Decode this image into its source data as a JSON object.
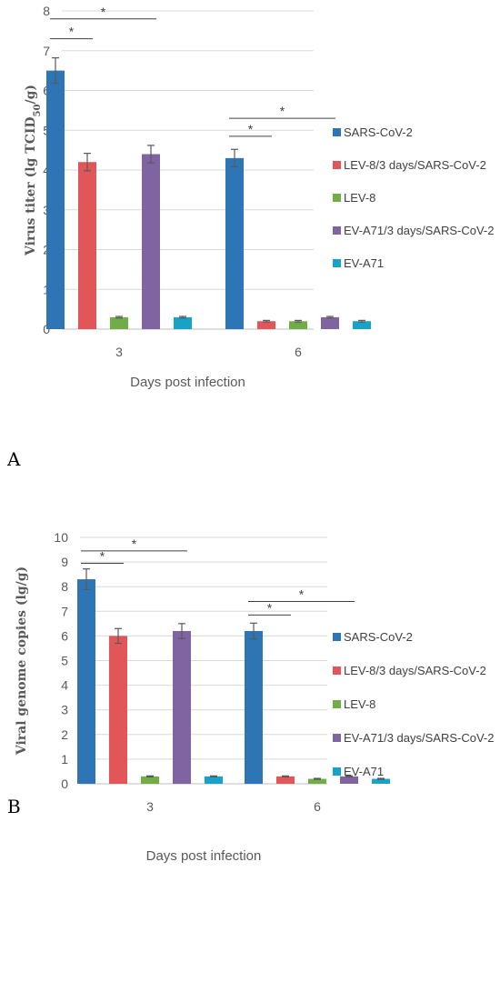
{
  "colors": [
    "#2e75b6",
    "#e15759",
    "#70ad47",
    "#8064a2",
    "#17a2c8"
  ],
  "chart_data": [
    {
      "type": "bar",
      "panel_label": "A",
      "categories": [
        "3",
        "6"
      ],
      "xlabel": "Days post infection",
      "ylabel": "Virus titer (lg TCID50/g)",
      "ylabel_main": "Virus titer (lg TCID",
      "ylabel_sub": "50",
      "ylabel_end": "/g)",
      "ylim": [
        0,
        8
      ],
      "yticks": [
        "0",
        "1",
        "2",
        "3",
        "4",
        "5",
        "6",
        "7",
        "8"
      ],
      "grid": true,
      "legend_position": "right",
      "series": [
        {
          "name": "SARS-CoV-2",
          "values": [
            6.5,
            4.3
          ],
          "errors": [
            0.32,
            0.22
          ]
        },
        {
          "name": "LEV-8/3 days/SARS-CoV-2",
          "values": [
            4.2,
            0.2
          ],
          "errors": [
            0.22,
            0.02
          ]
        },
        {
          "name": "LEV-8",
          "values": [
            0.3,
            0.2
          ],
          "errors": [
            0.02,
            0.02
          ]
        },
        {
          "name": "EV-A71/3 days/SARS-CoV-2",
          "values": [
            4.4,
            0.3
          ],
          "errors": [
            0.22,
            0.02
          ]
        },
        {
          "name": "EV-A71",
          "values": [
            0.3,
            0.2
          ],
          "errors": [
            0.02,
            0.02
          ]
        }
      ],
      "annotations": [
        {
          "text": "*",
          "group": 0,
          "from_series": 0,
          "to_series": 1,
          "level": 7.3
        },
        {
          "text": "*",
          "group": 0,
          "from_series": 0,
          "to_series": 3,
          "level": 7.8
        },
        {
          "text": "*",
          "group": 1,
          "from_series": 0,
          "to_series": 1,
          "level": 4.85
        },
        {
          "text": "*",
          "group": 1,
          "from_series": 0,
          "to_series": 3,
          "level": 5.3
        }
      ]
    },
    {
      "type": "bar",
      "panel_label": "B",
      "categories": [
        "3",
        "6"
      ],
      "xlabel": "Days post infection",
      "ylabel": "Viral genome copies (lg/g)",
      "ylabel_main": "Viral genome copies (lg/g)",
      "ylabel_sub": "",
      "ylabel_end": "",
      "ylim": [
        0,
        10
      ],
      "yticks": [
        "0",
        "1",
        "2",
        "3",
        "4",
        "5",
        "6",
        "7",
        "8",
        "9",
        "10"
      ],
      "grid": true,
      "legend_position": "right",
      "series": [
        {
          "name": "SARS-CoV-2",
          "values": [
            8.3,
            6.2
          ],
          "errors": [
            0.42,
            0.32
          ]
        },
        {
          "name": "LEV-8/3 days/SARS-CoV-2",
          "values": [
            6.0,
            0.3
          ],
          "errors": [
            0.3,
            0.02
          ]
        },
        {
          "name": "LEV-8",
          "values": [
            0.3,
            0.2
          ],
          "errors": [
            0.02,
            0.02
          ]
        },
        {
          "name": "EV-A71/3 days/SARS-CoV-2",
          "values": [
            6.2,
            0.3
          ],
          "errors": [
            0.3,
            0.02
          ]
        },
        {
          "name": "EV-A71",
          "values": [
            0.3,
            0.2
          ],
          "errors": [
            0.02,
            0.02
          ]
        }
      ],
      "annotations": [
        {
          "text": "*",
          "group": 0,
          "from_series": 0,
          "to_series": 1,
          "level": 8.95
        },
        {
          "text": "*",
          "group": 0,
          "from_series": 0,
          "to_series": 3,
          "level": 9.45
        },
        {
          "text": "*",
          "group": 1,
          "from_series": 0,
          "to_series": 1,
          "level": 6.85
        },
        {
          "text": "*",
          "group": 1,
          "from_series": 0,
          "to_series": 3,
          "level": 7.4
        }
      ]
    }
  ]
}
